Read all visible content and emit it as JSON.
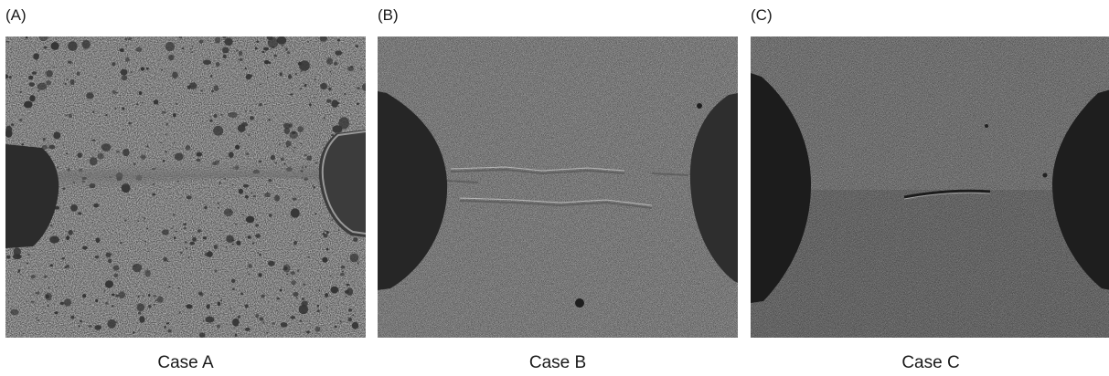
{
  "panels": [
    {
      "letter": "(A)",
      "caption": "Case A"
    },
    {
      "letter": "(B)",
      "caption": "Case B"
    },
    {
      "letter": "(C)",
      "caption": "Case C"
    }
  ],
  "colors": {
    "speckle_dark": "#2e2e2e",
    "surface_a": "#bdbdbd",
    "surface_b": "#9c9c9c",
    "surface_c": "#8e8e8e",
    "notch": "#262626"
  }
}
